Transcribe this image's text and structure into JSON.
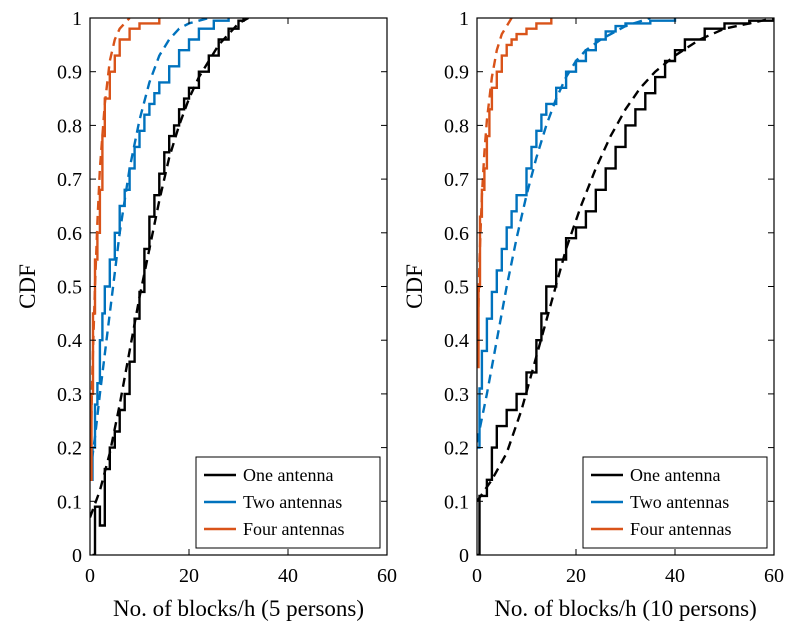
{
  "chart_data": [
    {
      "type": "line",
      "xlabel": "No. of blocks/h (5 persons)",
      "ylabel": "CDF",
      "xlim": [
        0,
        60
      ],
      "ylim": [
        0,
        1
      ],
      "xticks": [
        0,
        20,
        40,
        60
      ],
      "yticks": [
        0,
        0.1,
        0.2,
        0.3,
        0.4,
        0.5,
        0.6,
        0.7,
        0.8,
        0.9,
        1
      ],
      "grid": false,
      "legend": "bottom-right",
      "series": [
        {
          "name": "One antenna",
          "color": "#000000",
          "style": "step",
          "legend": true,
          "points": [
            [
              0.5,
              0
            ],
            [
              1,
              0.09
            ],
            [
              2,
              0.055
            ],
            [
              3,
              0.16
            ],
            [
              4,
              0.2
            ],
            [
              5,
              0.23
            ],
            [
              6,
              0.27
            ],
            [
              7,
              0.3
            ],
            [
              8,
              0.36
            ],
            [
              9,
              0.44
            ],
            [
              10,
              0.49
            ],
            [
              11,
              0.57
            ],
            [
              12,
              0.63
            ],
            [
              13,
              0.67
            ],
            [
              14,
              0.71
            ],
            [
              15,
              0.75
            ],
            [
              16,
              0.78
            ],
            [
              17,
              0.8
            ],
            [
              18,
              0.83
            ],
            [
              19,
              0.85
            ],
            [
              20,
              0.87
            ],
            [
              22,
              0.9
            ],
            [
              24,
              0.93
            ],
            [
              26,
              0.96
            ],
            [
              28,
              0.98
            ],
            [
              30,
              0.995
            ],
            [
              31,
              1
            ]
          ]
        },
        {
          "name": "One antenna (fit)",
          "color": "#000000",
          "style": "dashed",
          "legend": false,
          "points": [
            [
              0,
              0.07
            ],
            [
              2,
              0.12
            ],
            [
              4,
              0.19
            ],
            [
              6,
              0.28
            ],
            [
              8,
              0.38
            ],
            [
              10,
              0.48
            ],
            [
              12,
              0.57
            ],
            [
              14,
              0.66
            ],
            [
              16,
              0.74
            ],
            [
              18,
              0.8
            ],
            [
              20,
              0.85
            ],
            [
              22,
              0.89
            ],
            [
              24,
              0.92
            ],
            [
              26,
              0.95
            ],
            [
              28,
              0.97
            ],
            [
              30,
              0.99
            ],
            [
              32,
              1
            ]
          ]
        },
        {
          "name": "Two antennas",
          "color": "#0072BD",
          "style": "step",
          "legend": true,
          "points": [
            [
              0,
              0.14
            ],
            [
              0.5,
              0.2
            ],
            [
              1,
              0.28
            ],
            [
              1.5,
              0.32
            ],
            [
              2,
              0.4
            ],
            [
              2.5,
              0.45
            ],
            [
              3,
              0.5
            ],
            [
              4,
              0.55
            ],
            [
              5,
              0.6
            ],
            [
              6,
              0.65
            ],
            [
              7,
              0.68
            ],
            [
              8,
              0.72
            ],
            [
              9,
              0.76
            ],
            [
              10,
              0.79
            ],
            [
              11,
              0.82
            ],
            [
              12,
              0.84
            ],
            [
              13,
              0.86
            ],
            [
              14,
              0.88
            ],
            [
              16,
              0.91
            ],
            [
              18,
              0.94
            ],
            [
              20,
              0.96
            ],
            [
              22,
              0.98
            ],
            [
              25,
              0.995
            ],
            [
              28,
              1
            ]
          ]
        },
        {
          "name": "Two antennas (fit)",
          "color": "#0072BD",
          "style": "dashed",
          "legend": false,
          "points": [
            [
              0,
              0.15
            ],
            [
              1,
              0.22
            ],
            [
              2,
              0.3
            ],
            [
              4,
              0.45
            ],
            [
              6,
              0.6
            ],
            [
              8,
              0.72
            ],
            [
              10,
              0.81
            ],
            [
              12,
              0.88
            ],
            [
              14,
              0.93
            ],
            [
              16,
              0.96
            ],
            [
              18,
              0.98
            ],
            [
              20,
              0.99
            ],
            [
              24,
              1
            ]
          ]
        },
        {
          "name": "Four antennas",
          "color": "#D95319",
          "style": "step",
          "legend": true,
          "points": [
            [
              0,
              0.14
            ],
            [
              0.3,
              0.3
            ],
            [
              0.6,
              0.45
            ],
            [
              1,
              0.55
            ],
            [
              1.5,
              0.6
            ],
            [
              2,
              0.68
            ],
            [
              2.5,
              0.78
            ],
            [
              3,
              0.85
            ],
            [
              4,
              0.9
            ],
            [
              5,
              0.93
            ],
            [
              6,
              0.96
            ],
            [
              8,
              0.98
            ],
            [
              10,
              0.99
            ],
            [
              14,
              1
            ]
          ]
        },
        {
          "name": "Four antennas (fit)",
          "color": "#D95319",
          "style": "dashed",
          "legend": false,
          "points": [
            [
              0,
              0.14
            ],
            [
              0.5,
              0.35
            ],
            [
              1,
              0.5
            ],
            [
              1.5,
              0.62
            ],
            [
              2,
              0.72
            ],
            [
              3,
              0.84
            ],
            [
              4,
              0.92
            ],
            [
              5,
              0.96
            ],
            [
              6,
              0.98
            ],
            [
              8,
              1
            ]
          ]
        }
      ]
    },
    {
      "type": "line",
      "xlabel": "No. of blocks/h (10 persons)",
      "ylabel": "CDF",
      "xlim": [
        0,
        60
      ],
      "ylim": [
        0,
        1
      ],
      "xticks": [
        0,
        20,
        40,
        60
      ],
      "yticks": [
        0,
        0.1,
        0.2,
        0.3,
        0.4,
        0.5,
        0.6,
        0.7,
        0.8,
        0.9,
        1
      ],
      "grid": false,
      "legend": "bottom-right",
      "series": [
        {
          "name": "One antenna",
          "color": "#000000",
          "style": "step",
          "legend": true,
          "points": [
            [
              0,
              0
            ],
            [
              0.5,
              0.11
            ],
            [
              2,
              0.14
            ],
            [
              3,
              0.2
            ],
            [
              4,
              0.24
            ],
            [
              6,
              0.27
            ],
            [
              8,
              0.3
            ],
            [
              10,
              0.34
            ],
            [
              12,
              0.4
            ],
            [
              13,
              0.45
            ],
            [
              14,
              0.5
            ],
            [
              16,
              0.55
            ],
            [
              18,
              0.59
            ],
            [
              20,
              0.61
            ],
            [
              22,
              0.64
            ],
            [
              24,
              0.68
            ],
            [
              26,
              0.72
            ],
            [
              28,
              0.76
            ],
            [
              30,
              0.8
            ],
            [
              32,
              0.83
            ],
            [
              34,
              0.86
            ],
            [
              36,
              0.89
            ],
            [
              38,
              0.92
            ],
            [
              40,
              0.94
            ],
            [
              42,
              0.96
            ],
            [
              46,
              0.98
            ],
            [
              50,
              0.99
            ],
            [
              55,
              0.995
            ],
            [
              60,
              1
            ]
          ]
        },
        {
          "name": "One antenna (fit)",
          "color": "#000000",
          "style": "dashed",
          "legend": false,
          "points": [
            [
              0,
              0.1
            ],
            [
              3,
              0.14
            ],
            [
              6,
              0.19
            ],
            [
              9,
              0.27
            ],
            [
              12,
              0.37
            ],
            [
              15,
              0.47
            ],
            [
              18,
              0.57
            ],
            [
              21,
              0.65
            ],
            [
              24,
              0.72
            ],
            [
              27,
              0.78
            ],
            [
              30,
              0.83
            ],
            [
              33,
              0.87
            ],
            [
              36,
              0.9
            ],
            [
              40,
              0.93
            ],
            [
              45,
              0.96
            ],
            [
              50,
              0.98
            ],
            [
              55,
              0.99
            ],
            [
              60,
              1
            ]
          ]
        },
        {
          "name": "Two antennas",
          "color": "#0072BD",
          "style": "step",
          "legend": true,
          "points": [
            [
              0,
              0.2
            ],
            [
              0.5,
              0.31
            ],
            [
              1,
              0.38
            ],
            [
              2,
              0.44
            ],
            [
              3,
              0.49
            ],
            [
              4,
              0.53
            ],
            [
              5,
              0.57
            ],
            [
              6,
              0.61
            ],
            [
              7,
              0.64
            ],
            [
              8,
              0.67
            ],
            [
              10,
              0.72
            ],
            [
              11,
              0.76
            ],
            [
              12,
              0.79
            ],
            [
              13,
              0.82
            ],
            [
              14,
              0.84
            ],
            [
              16,
              0.87
            ],
            [
              18,
              0.9
            ],
            [
              20,
              0.92
            ],
            [
              22,
              0.94
            ],
            [
              24,
              0.96
            ],
            [
              26,
              0.975
            ],
            [
              28,
              0.985
            ],
            [
              30,
              0.99
            ],
            [
              35,
              0.995
            ],
            [
              40,
              1
            ]
          ]
        },
        {
          "name": "Two antennas (fit)",
          "color": "#0072BD",
          "style": "dashed",
          "legend": false,
          "points": [
            [
              0,
              0.21
            ],
            [
              2,
              0.3
            ],
            [
              4,
              0.4
            ],
            [
              6,
              0.5
            ],
            [
              8,
              0.59
            ],
            [
              10,
              0.67
            ],
            [
              12,
              0.74
            ],
            [
              14,
              0.8
            ],
            [
              16,
              0.85
            ],
            [
              18,
              0.89
            ],
            [
              20,
              0.92
            ],
            [
              22,
              0.94
            ],
            [
              25,
              0.96
            ],
            [
              30,
              0.985
            ],
            [
              35,
              1
            ]
          ]
        },
        {
          "name": "Four antennas",
          "color": "#D95319",
          "style": "step",
          "legend": true,
          "points": [
            [
              0,
              0.35
            ],
            [
              0.3,
              0.5
            ],
            [
              0.6,
              0.63
            ],
            [
              1,
              0.68
            ],
            [
              1.5,
              0.72
            ],
            [
              2,
              0.78
            ],
            [
              2.5,
              0.83
            ],
            [
              3,
              0.87
            ],
            [
              4,
              0.9
            ],
            [
              5,
              0.93
            ],
            [
              6,
              0.95
            ],
            [
              7,
              0.96
            ],
            [
              8,
              0.97
            ],
            [
              10,
              0.98
            ],
            [
              12,
              0.99
            ],
            [
              15,
              1
            ]
          ]
        },
        {
          "name": "Four antennas (fit)",
          "color": "#D95319",
          "style": "dashed",
          "legend": false,
          "points": [
            [
              0,
              0.35
            ],
            [
              0.5,
              0.55
            ],
            [
              1,
              0.67
            ],
            [
              1.5,
              0.75
            ],
            [
              2,
              0.81
            ],
            [
              3,
              0.89
            ],
            [
              4,
              0.94
            ],
            [
              5,
              0.97
            ],
            [
              6,
              0.985
            ],
            [
              7,
              1
            ]
          ]
        }
      ]
    }
  ]
}
